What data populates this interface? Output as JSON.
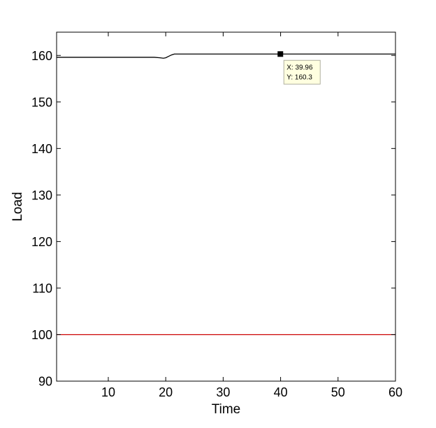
{
  "chart_data": {
    "type": "line",
    "title": "",
    "xlabel": "Time",
    "ylabel": "Load",
    "xlim": [
      1,
      60
    ],
    "ylim": [
      90,
      165
    ],
    "xticks": [
      10,
      20,
      30,
      40,
      50,
      60
    ],
    "yticks": [
      90,
      100,
      110,
      120,
      130,
      140,
      150,
      160
    ],
    "grid": false,
    "series": [
      {
        "color": "#000000",
        "x": [
          1,
          5,
          10,
          15,
          18,
          19,
          19.6,
          20,
          20.5,
          21,
          21.5,
          22,
          25,
          30,
          35,
          39.96,
          45,
          50,
          55,
          60
        ],
        "y": [
          159.6,
          159.6,
          159.6,
          159.6,
          159.6,
          159.5,
          159.4,
          159.5,
          159.8,
          160.1,
          160.3,
          160.3,
          160.3,
          160.3,
          160.3,
          160.3,
          160.3,
          160.3,
          160.3,
          160.3
        ]
      },
      {
        "color": "#cc0000",
        "x": [
          1,
          60
        ],
        "y": [
          100,
          100
        ]
      }
    ],
    "datatip": {
      "x": 39.96,
      "y": 160.3,
      "x_text": "X: 39.96",
      "y_text": "Y: 160.3"
    }
  }
}
